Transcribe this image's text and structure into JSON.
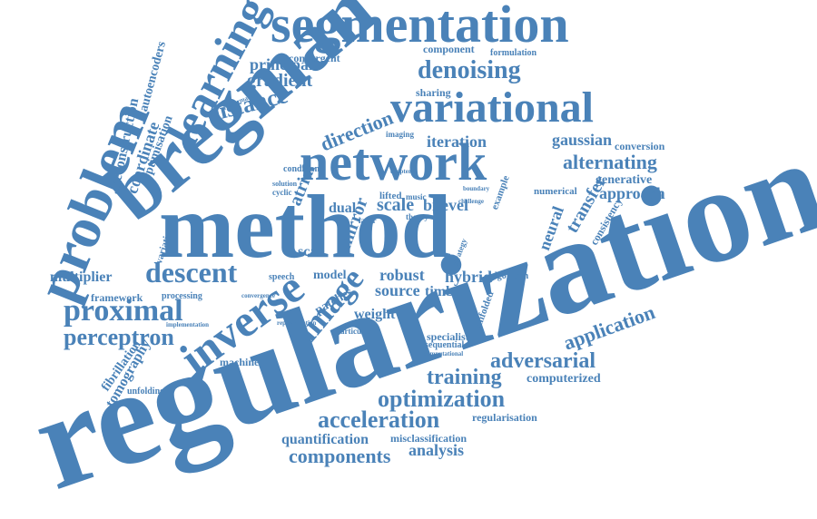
{
  "colors": {
    "word": "#4a82b8",
    "background": "#ffffff"
  },
  "words": [
    "regularization",
    "method",
    "bregman",
    "network",
    "segmentation",
    "variational",
    "problem",
    "inverse",
    "learning",
    "proximal",
    "image",
    "descent",
    "denoising",
    "distance",
    "principal",
    "gradient",
    "direction",
    "iteration",
    "alternating",
    "gaussian",
    "conversion",
    "generative",
    "approach",
    "bilevel",
    "scale",
    "transfer",
    "consistency",
    "neural",
    "application",
    "adversarial",
    "computerized",
    "training",
    "optimization",
    "acceleration",
    "regularisation",
    "quantification",
    "misclassification",
    "components",
    "analysis",
    "multiplier",
    "framework",
    "processing",
    "perceptron",
    "machine",
    "fibrillation",
    "tomography",
    "unfolding",
    "reconstruction",
    "coordinate",
    "optimisation",
    "autoencoders",
    "convergent",
    "component",
    "formulation",
    "robust",
    "source",
    "timbre",
    "hybrid",
    "algorithm",
    "weight",
    "model",
    "patches",
    "dual",
    "speech",
    "lifted",
    "music",
    "theory",
    "imaging",
    "sharing",
    "specialist",
    "sequential",
    "computational",
    "unfolded",
    "mirror",
    "example",
    "numerical",
    "convergence",
    "representation",
    "variation",
    "implementation",
    "performance",
    "condition",
    "solution",
    "cyclic",
    "chapter",
    "boundary",
    "layer",
    "challenge",
    "strategy",
    "particular",
    "atrial",
    "scar"
  ]
}
